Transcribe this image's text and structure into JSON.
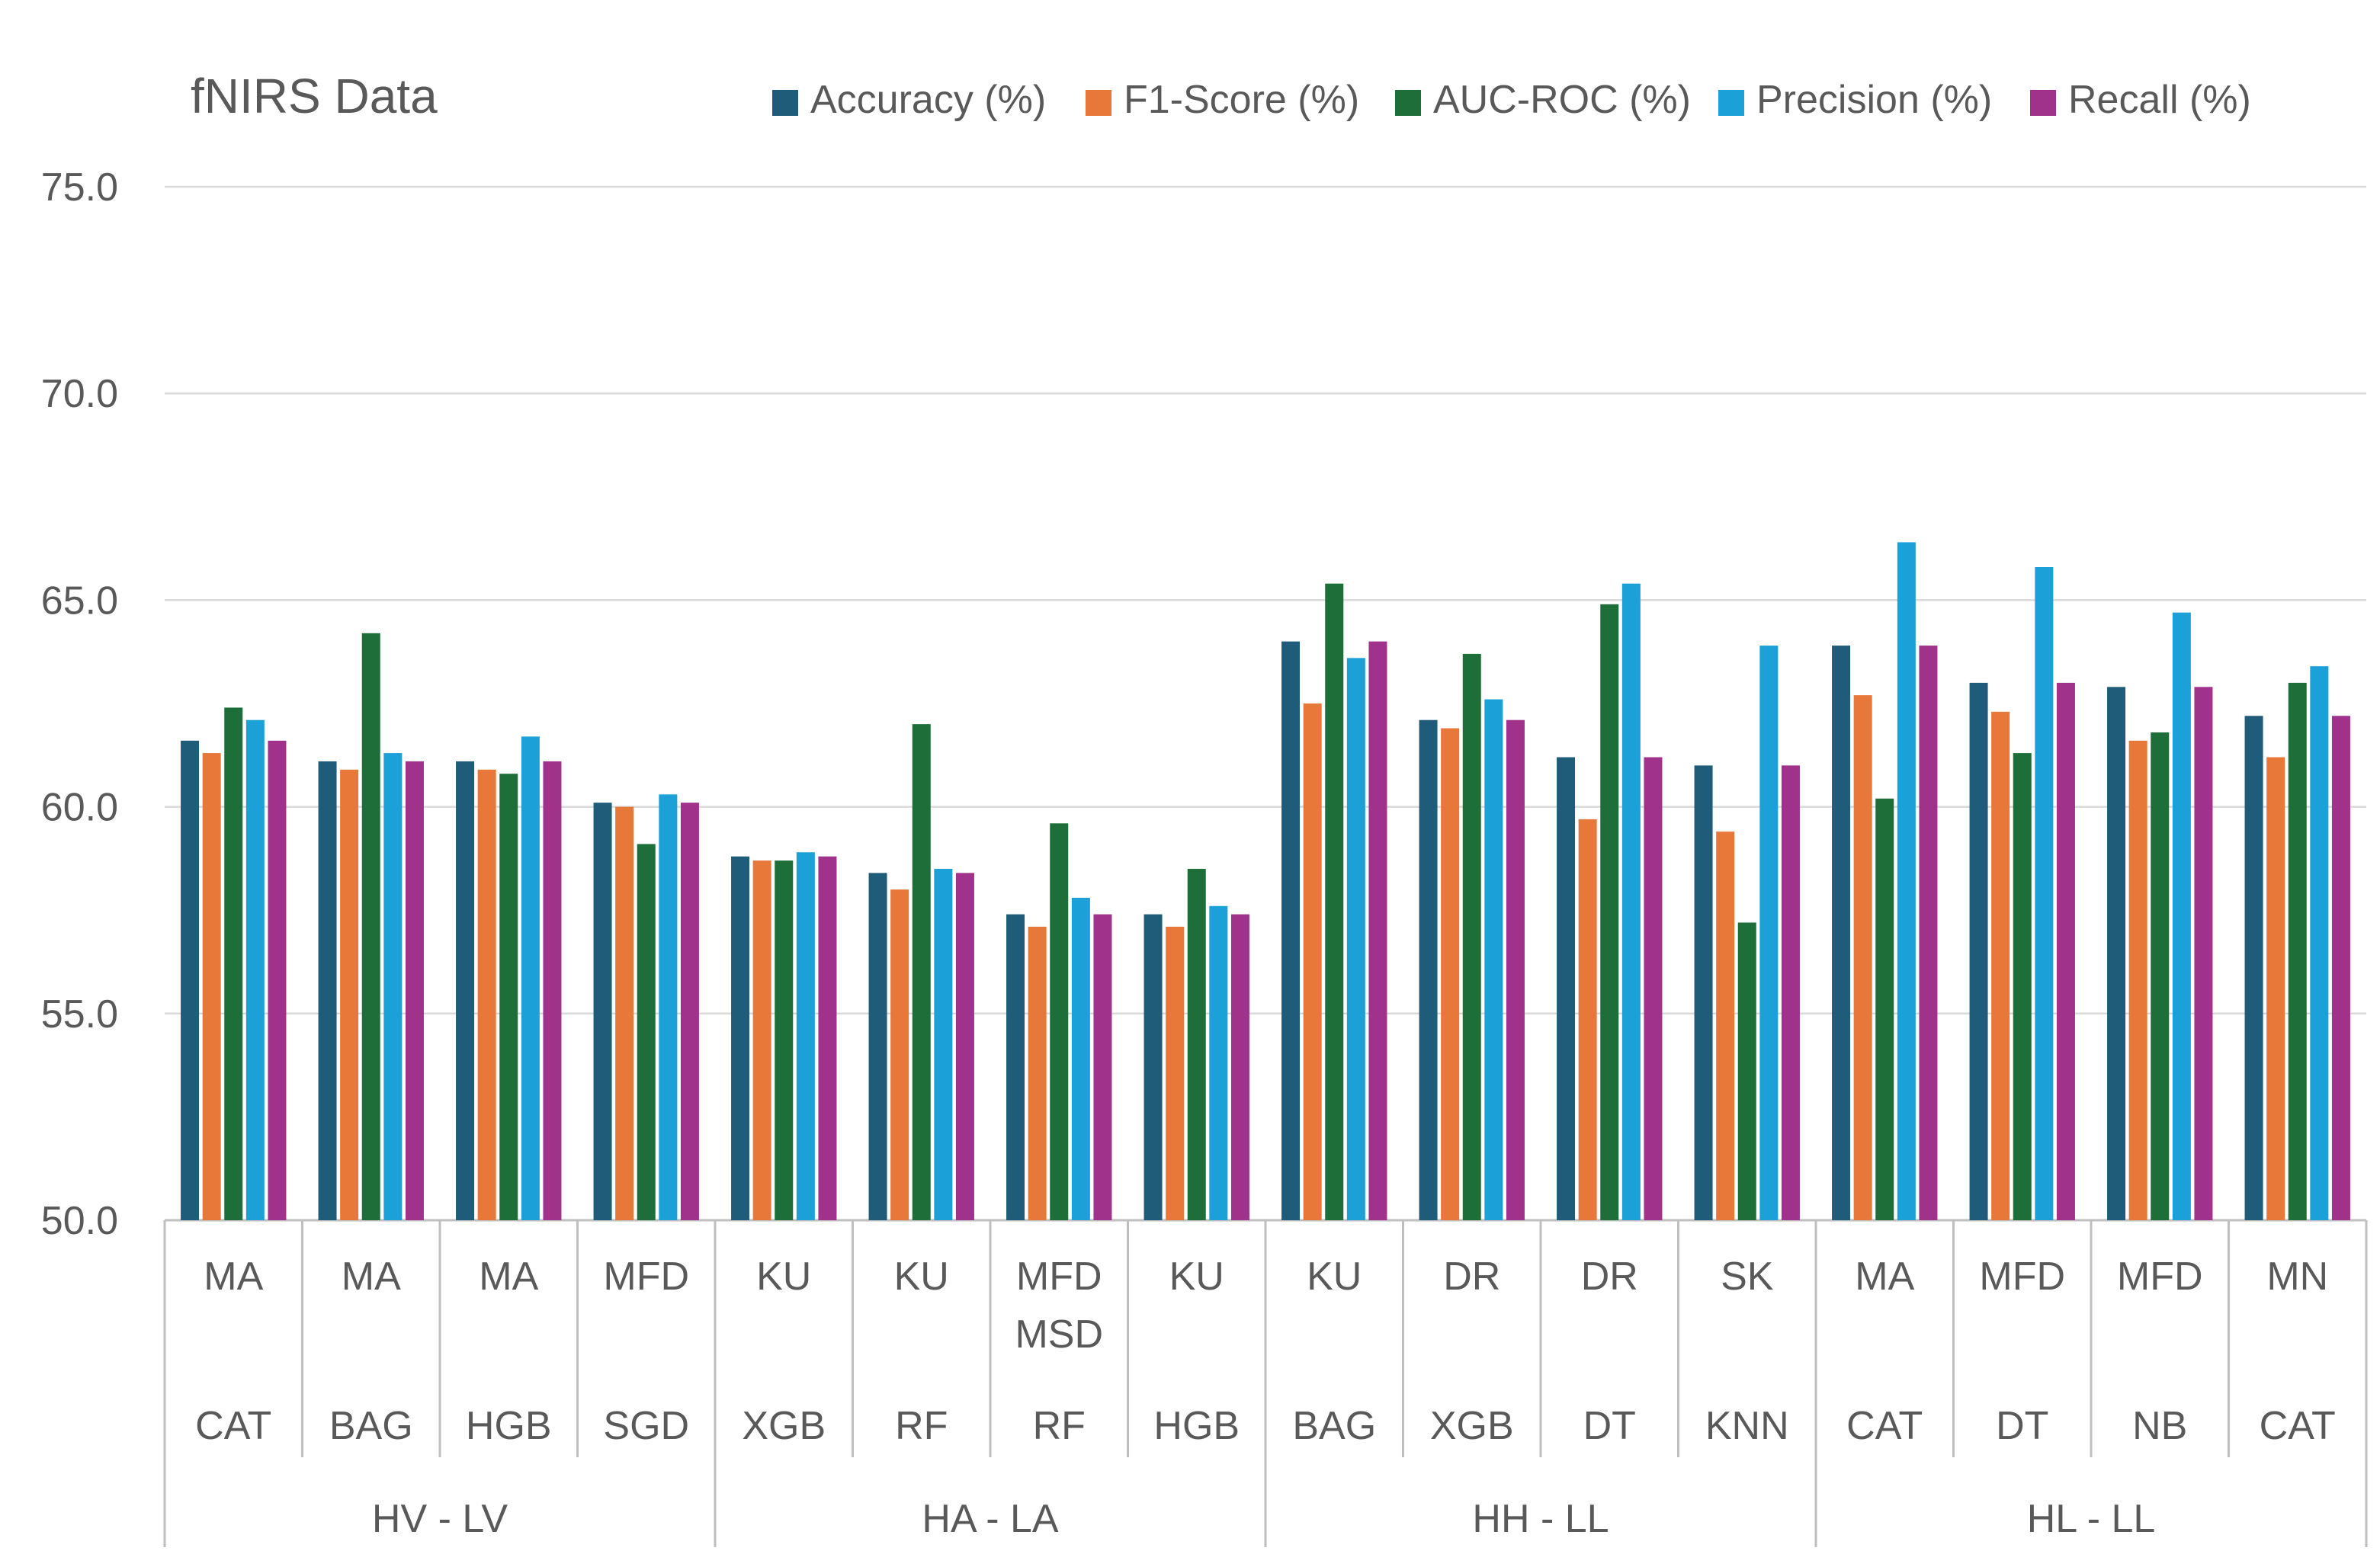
{
  "chart_data": {
    "type": "bar",
    "title": "fNIRS Data",
    "xlabel": "",
    "ylabel": "",
    "ylim": [
      50,
      75
    ],
    "ytick_step": 5,
    "ytick_labels": [
      "50.0",
      "55.0",
      "60.0",
      "65.0",
      "70.0",
      "75.0"
    ],
    "grid": true,
    "legend_position": "top",
    "series": [
      {
        "name": "Accuracy (%)",
        "color": "#1f5c7a",
        "values": [
          61.6,
          61.1,
          61.1,
          60.1,
          58.8,
          58.4,
          57.4,
          57.4,
          64.0,
          62.1,
          61.2,
          61.0,
          63.9,
          63.0,
          62.9,
          62.2
        ]
      },
      {
        "name": "F1-Score (%)",
        "color": "#e8773a",
        "values": [
          61.3,
          60.9,
          60.9,
          60.0,
          58.7,
          58.0,
          57.1,
          57.1,
          62.5,
          61.9,
          59.7,
          59.4,
          62.7,
          62.3,
          61.6,
          61.2
        ]
      },
      {
        "name": "AUC-ROC (%)",
        "color": "#1e6e3a",
        "values": [
          62.4,
          64.2,
          60.8,
          59.1,
          58.7,
          62.0,
          59.6,
          58.5,
          65.4,
          63.7,
          64.9,
          57.2,
          60.2,
          61.3,
          61.8,
          63.0
        ]
      },
      {
        "name": "Precision (%)",
        "color": "#1ba0d8",
        "values": [
          62.1,
          61.3,
          61.7,
          60.3,
          58.9,
          58.5,
          57.8,
          57.6,
          63.6,
          62.6,
          65.4,
          63.9,
          66.4,
          65.8,
          64.7,
          63.4
        ]
      },
      {
        "name": "Recall (%)",
        "color": "#a0328c",
        "values": [
          61.6,
          61.1,
          61.1,
          60.1,
          58.8,
          58.4,
          57.4,
          57.4,
          64.0,
          62.1,
          61.2,
          61.0,
          63.9,
          63.0,
          62.9,
          62.2
        ]
      }
    ],
    "categories": [
      {
        "feature": [
          "MA"
        ],
        "model": "CAT"
      },
      {
        "feature": [
          "MA"
        ],
        "model": "BAG"
      },
      {
        "feature": [
          "MA"
        ],
        "model": "HGB"
      },
      {
        "feature": [
          "MFD"
        ],
        "model": "SGD"
      },
      {
        "feature": [
          "KU"
        ],
        "model": "XGB"
      },
      {
        "feature": [
          "KU"
        ],
        "model": "RF"
      },
      {
        "feature": [
          "MFD",
          "MSD"
        ],
        "model": "RF"
      },
      {
        "feature": [
          "KU"
        ],
        "model": "HGB"
      },
      {
        "feature": [
          "KU"
        ],
        "model": "BAG"
      },
      {
        "feature": [
          "DR"
        ],
        "model": "XGB"
      },
      {
        "feature": [
          "DR"
        ],
        "model": "DT"
      },
      {
        "feature": [
          "SK"
        ],
        "model": "KNN"
      },
      {
        "feature": [
          "MA"
        ],
        "model": "CAT"
      },
      {
        "feature": [
          "MFD"
        ],
        "model": "DT"
      },
      {
        "feature": [
          "MFD"
        ],
        "model": "NB"
      },
      {
        "feature": [
          "MN"
        ],
        "model": "CAT"
      }
    ],
    "groups": [
      {
        "label": "HV - LV",
        "count": 4
      },
      {
        "label": "HA - LA",
        "count": 4
      },
      {
        "label": "HH - LL",
        "count": 4
      },
      {
        "label": "HL - LL",
        "count": 4
      }
    ]
  }
}
